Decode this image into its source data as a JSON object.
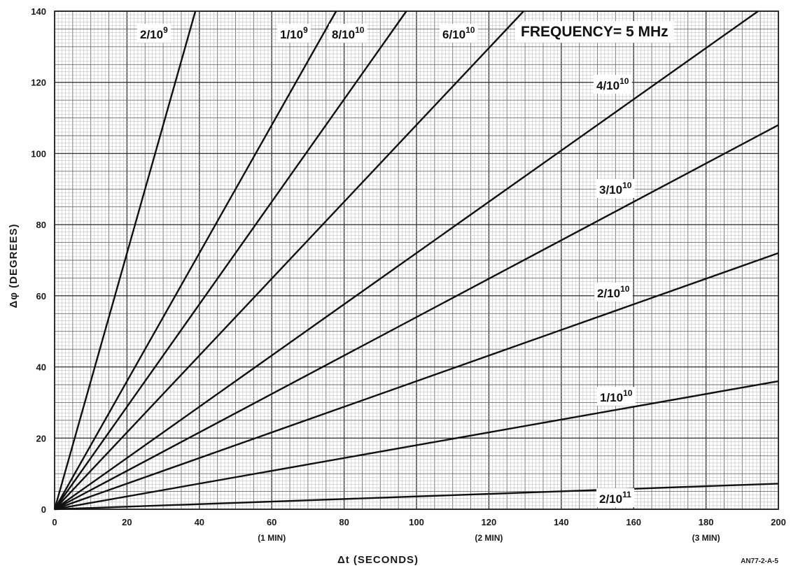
{
  "chart_data": {
    "type": "line",
    "annotation": "FREQUENCY= 5 MHz",
    "xlabel": "Δt  (SECONDS)",
    "ylabel": "Δφ  (DEGREES)",
    "xlim": [
      0,
      200
    ],
    "ylim": [
      0,
      140
    ],
    "x_ticks": [
      0,
      20,
      40,
      60,
      80,
      100,
      120,
      140,
      160,
      180,
      200
    ],
    "x_tick_sublabels": [
      {
        "x": 60,
        "text": "(1 MIN)"
      },
      {
        "x": 120,
        "text": "(2 MIN)"
      },
      {
        "x": 180,
        "text": "(3 MIN)"
      }
    ],
    "y_ticks": [
      0,
      20,
      40,
      60,
      80,
      100,
      120,
      140
    ],
    "grid": true,
    "figure_code": "AN77-2-A-5",
    "series": [
      {
        "name": "2/10^9",
        "label_base": "2/10",
        "label_exp": "9",
        "x": [
          0,
          38.9
        ],
        "y": [
          0,
          140
        ]
      },
      {
        "name": "1/10^9",
        "label_base": "1/10",
        "label_exp": "9",
        "x": [
          0,
          77.8
        ],
        "y": [
          0,
          140
        ]
      },
      {
        "name": "8/10^10",
        "label_base": "8/10",
        "label_exp": "10",
        "x": [
          0,
          97.2
        ],
        "y": [
          0,
          140
        ]
      },
      {
        "name": "6/10^10",
        "label_base": "6/10",
        "label_exp": "10",
        "x": [
          0,
          129.6
        ],
        "y": [
          0,
          140
        ]
      },
      {
        "name": "4/10^10",
        "label_base": "4/10",
        "label_exp": "10",
        "x": [
          0,
          194.4
        ],
        "y": [
          0,
          140
        ]
      },
      {
        "name": "3/10^10",
        "label_base": "3/10",
        "label_exp": "10",
        "x": [
          0,
          200
        ],
        "y": [
          0,
          108
        ]
      },
      {
        "name": "2/10^10",
        "label_base": "2/10",
        "label_exp": "10",
        "x": [
          0,
          200
        ],
        "y": [
          0,
          72
        ]
      },
      {
        "name": "1/10^10",
        "label_base": "1/10",
        "label_exp": "10",
        "x": [
          0,
          200
        ],
        "y": [
          0,
          36
        ]
      },
      {
        "name": "2/10^11",
        "label_base": "2/10",
        "label_exp": "11",
        "x": [
          0,
          200
        ],
        "y": [
          0,
          7.2
        ]
      }
    ]
  }
}
